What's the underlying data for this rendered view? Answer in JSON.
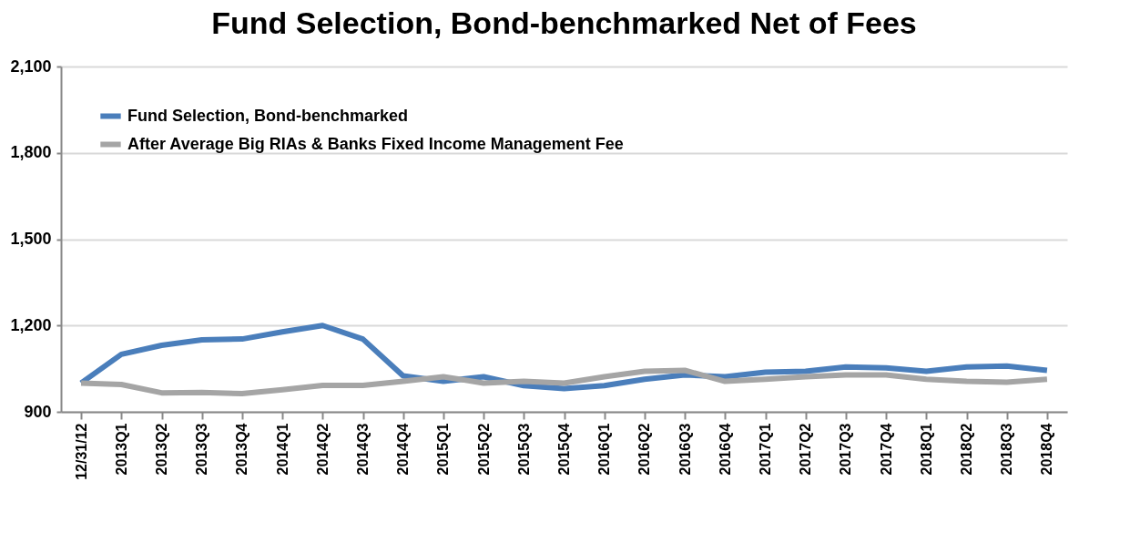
{
  "chart_data": {
    "type": "line",
    "title": "Fund Selection, Bond-benchmarked Net of Fees",
    "categories": [
      "12/31/12",
      "2013Q1",
      "2013Q2",
      "2013Q3",
      "2013Q4",
      "2014Q1",
      "2014Q2",
      "2014Q3",
      "2014Q4",
      "2015Q1",
      "2015Q2",
      "2015Q3",
      "2015Q4",
      "2016Q1",
      "2016Q2",
      "2016Q3",
      "2016Q4",
      "2017Q1",
      "2017Q2",
      "2017Q3",
      "2017Q4",
      "2018Q1",
      "2018Q2",
      "2018Q3",
      "2018Q4"
    ],
    "series": [
      {
        "name": "Fund Selection, Bond-benchmarked",
        "color": "#4a7ebb",
        "values": [
          1000,
          1100,
          1131,
          1150,
          1153,
          1178,
          1200,
          1153,
          1025,
          1006,
          1022,
          991,
          981,
          991,
          1013,
          1028,
          1022,
          1038,
          1041,
          1056,
          1053,
          1041,
          1056,
          1059,
          1044
        ]
      },
      {
        "name": "After Average Big RIAs & Banks Fixed Income Management Fee",
        "color": "#a5a5a5",
        "values": [
          1000,
          995,
          966,
          967,
          963,
          977,
          992,
          992,
          1006,
          1022,
          1000,
          1006,
          1000,
          1022,
          1041,
          1044,
          1006,
          1013,
          1022,
          1028,
          1028,
          1013,
          1006,
          1003,
          1013
        ]
      }
    ],
    "ylim": [
      900,
      2100
    ],
    "yticks": [
      {
        "value": 900,
        "label": "900"
      },
      {
        "value": 1200,
        "label": "1,200"
      },
      {
        "value": 1500,
        "label": "1,500"
      },
      {
        "value": 1800,
        "label": "1,800"
      },
      {
        "value": 2100,
        "label": "2,100"
      }
    ],
    "grid": "y",
    "legend": "top left",
    "marker": "none",
    "line_style": "solid"
  }
}
